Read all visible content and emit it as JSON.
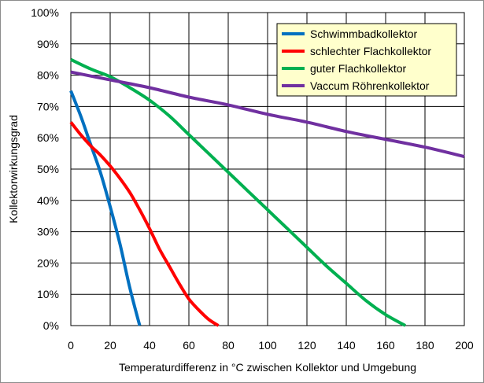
{
  "chart_data": {
    "type": "line",
    "title": "",
    "xlabel": "Temperaturdifferenz in °C zwischen Kollektor und Umgebung",
    "ylabel": "Kollektorwirkungsgrad",
    "xlim": [
      0,
      200
    ],
    "ylim": [
      0,
      100
    ],
    "x_ticks": [
      "0",
      "20",
      "40",
      "60",
      "80",
      "100",
      "120",
      "140",
      "160",
      "180",
      "200"
    ],
    "y_ticks": [
      "0%",
      "10%",
      "20%",
      "30%",
      "40%",
      "50%",
      "60%",
      "70%",
      "80%",
      "90%",
      "100%"
    ],
    "grid": true,
    "legend_position": "top-right",
    "series": [
      {
        "name": "Schwimmbadkollektor",
        "color": "#0070c0",
        "points": [
          [
            0,
            75
          ],
          [
            5,
            67
          ],
          [
            10,
            58
          ],
          [
            15,
            49
          ],
          [
            20,
            38
          ],
          [
            25,
            26
          ],
          [
            30,
            12
          ],
          [
            35,
            0
          ]
        ]
      },
      {
        "name": "schlechter Flachkollektor",
        "color": "#ff0000",
        "points": [
          [
            0,
            65
          ],
          [
            5,
            61
          ],
          [
            10,
            57.5
          ],
          [
            15,
            54.5
          ],
          [
            20,
            51
          ],
          [
            25,
            47
          ],
          [
            30,
            42.5
          ],
          [
            35,
            37
          ],
          [
            40,
            31
          ],
          [
            45,
            24.5
          ],
          [
            50,
            19
          ],
          [
            55,
            13.5
          ],
          [
            60,
            8.5
          ],
          [
            65,
            5
          ],
          [
            70,
            2
          ],
          [
            75,
            0
          ]
        ]
      },
      {
        "name": "guter Flachkollektor",
        "color": "#00b050",
        "points": [
          [
            0,
            85
          ],
          [
            10,
            82
          ],
          [
            20,
            79.5
          ],
          [
            30,
            76
          ],
          [
            40,
            72
          ],
          [
            50,
            67
          ],
          [
            60,
            61
          ],
          [
            70,
            55
          ],
          [
            80,
            49
          ],
          [
            90,
            43
          ],
          [
            100,
            37
          ],
          [
            110,
            31
          ],
          [
            120,
            25
          ],
          [
            130,
            19
          ],
          [
            140,
            13.5
          ],
          [
            150,
            8
          ],
          [
            160,
            3.5
          ],
          [
            170,
            0
          ]
        ]
      },
      {
        "name": "Vaccum Röhrenkollektor",
        "color": "#7030a0",
        "points": [
          [
            0,
            81
          ],
          [
            20,
            78.5
          ],
          [
            40,
            76
          ],
          [
            60,
            73
          ],
          [
            80,
            70.5
          ],
          [
            100,
            67.5
          ],
          [
            120,
            65
          ],
          [
            140,
            62
          ],
          [
            160,
            59.5
          ],
          [
            180,
            57
          ],
          [
            200,
            54
          ]
        ]
      }
    ]
  }
}
